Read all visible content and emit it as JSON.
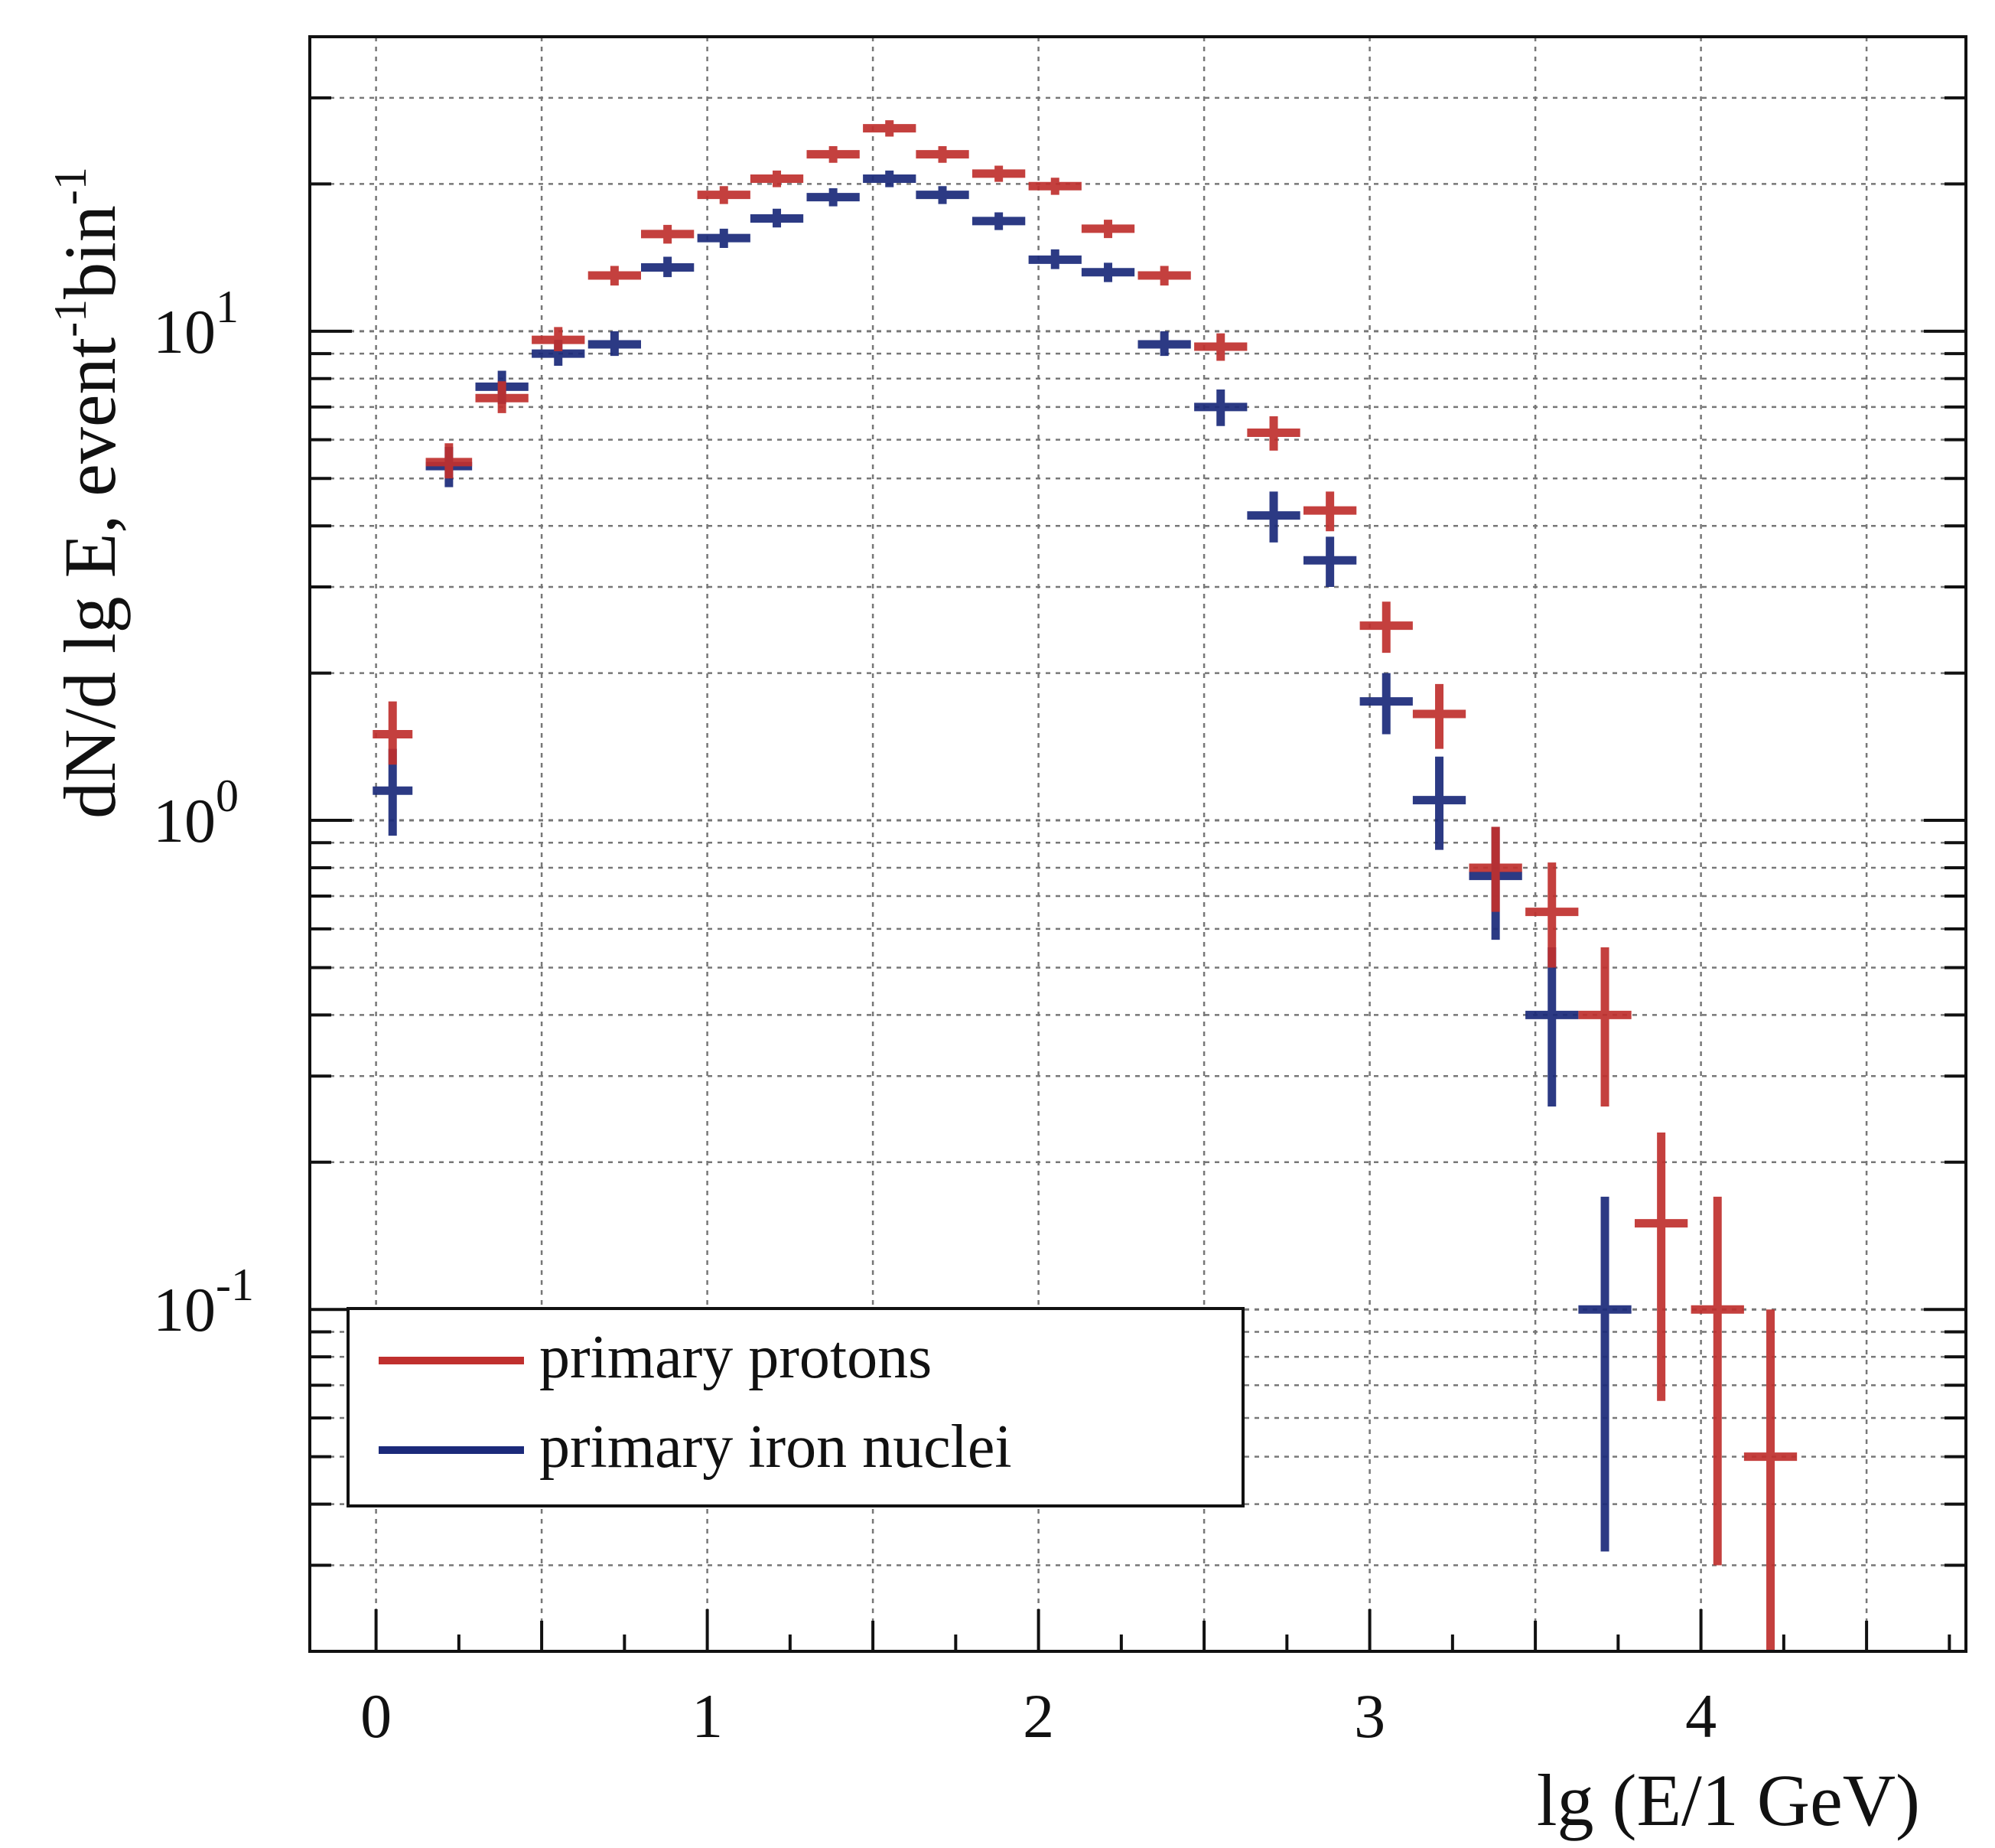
{
  "chart_data": {
    "type": "scatter",
    "title": "",
    "xlabel": "lg (E/1 GeV)",
    "ylabel": "dN/d lg E, event",
    "ylabel_sup1": "-1",
    "ylabel_mid": "bin",
    "ylabel_sup2": "-1",
    "xlim": [
      -0.2,
      4.8
    ],
    "ylim": [
      0.02,
      40
    ],
    "yscale": "log",
    "grid": true,
    "legend_position": "bottom-left",
    "x_ticks": [
      {
        "value": 0,
        "label": "0"
      },
      {
        "value": 1,
        "label": "1"
      },
      {
        "value": 2,
        "label": "2"
      },
      {
        "value": 3,
        "label": "3"
      },
      {
        "value": 4,
        "label": "4"
      }
    ],
    "y_ticks": [
      {
        "value": 10,
        "base": "10",
        "exp": "1"
      },
      {
        "value": 1,
        "base": "10",
        "exp": "0"
      },
      {
        "value": 0.1,
        "base": "10",
        "exp": "-1"
      }
    ],
    "series": [
      {
        "name": "primary protons",
        "color": "#c0302e",
        "points": [
          {
            "x": 0.05,
            "y": 1.5,
            "xerr": 0.06,
            "ylo": 1.3,
            "yhi": 1.75
          },
          {
            "x": 0.22,
            "y": 5.4,
            "xerr": 0.07,
            "ylo": 5.0,
            "yhi": 5.9
          },
          {
            "x": 0.38,
            "y": 7.3,
            "xerr": 0.08,
            "ylo": 6.8,
            "yhi": 7.9
          },
          {
            "x": 0.55,
            "y": 9.6,
            "xerr": 0.08,
            "ylo": 9.1,
            "yhi": 10.2
          },
          {
            "x": 0.72,
            "y": 13.0,
            "xerr": 0.08,
            "ylo": 12.4,
            "yhi": 13.6
          },
          {
            "x": 0.88,
            "y": 15.8,
            "xerr": 0.08,
            "ylo": 15.1,
            "yhi": 16.5
          },
          {
            "x": 1.05,
            "y": 19.0,
            "xerr": 0.08,
            "ylo": 18.2,
            "yhi": 19.8
          },
          {
            "x": 1.21,
            "y": 20.5,
            "xerr": 0.08,
            "ylo": 19.7,
            "yhi": 21.3
          },
          {
            "x": 1.38,
            "y": 23.0,
            "xerr": 0.08,
            "ylo": 22.1,
            "yhi": 23.9
          },
          {
            "x": 1.55,
            "y": 26.0,
            "xerr": 0.08,
            "ylo": 25.0,
            "yhi": 27.0
          },
          {
            "x": 1.71,
            "y": 23.0,
            "xerr": 0.08,
            "ylo": 22.1,
            "yhi": 23.9
          },
          {
            "x": 1.88,
            "y": 21.0,
            "xerr": 0.08,
            "ylo": 20.2,
            "yhi": 21.8
          },
          {
            "x": 2.05,
            "y": 19.8,
            "xerr": 0.08,
            "ylo": 19.0,
            "yhi": 20.6
          },
          {
            "x": 2.21,
            "y": 16.2,
            "xerr": 0.08,
            "ylo": 15.5,
            "yhi": 16.9
          },
          {
            "x": 2.38,
            "y": 13.0,
            "xerr": 0.08,
            "ylo": 12.4,
            "yhi": 13.6
          },
          {
            "x": 2.55,
            "y": 9.3,
            "xerr": 0.08,
            "ylo": 8.7,
            "yhi": 9.9
          },
          {
            "x": 2.71,
            "y": 6.2,
            "xerr": 0.08,
            "ylo": 5.7,
            "yhi": 6.7
          },
          {
            "x": 2.88,
            "y": 4.3,
            "xerr": 0.08,
            "ylo": 3.9,
            "yhi": 4.7
          },
          {
            "x": 3.05,
            "y": 2.5,
            "xerr": 0.08,
            "ylo": 2.2,
            "yhi": 2.8
          },
          {
            "x": 3.21,
            "y": 1.65,
            "xerr": 0.08,
            "ylo": 1.4,
            "yhi": 1.9
          },
          {
            "x": 3.38,
            "y": 0.8,
            "xerr": 0.08,
            "ylo": 0.65,
            "yhi": 0.97
          },
          {
            "x": 3.55,
            "y": 0.65,
            "xerr": 0.08,
            "ylo": 0.5,
            "yhi": 0.82
          },
          {
            "x": 3.71,
            "y": 0.4,
            "xerr": 0.08,
            "ylo": 0.26,
            "yhi": 0.55
          },
          {
            "x": 3.88,
            "y": 0.15,
            "xerr": 0.08,
            "ylo": 0.065,
            "yhi": 0.23
          },
          {
            "x": 4.05,
            "y": 0.1,
            "xerr": 0.08,
            "ylo": 0.03,
            "yhi": 0.17
          },
          {
            "x": 4.21,
            "y": 0.05,
            "xerr": 0.08,
            "ylo": 0.02,
            "yhi": 0.1
          }
        ]
      },
      {
        "name": "primary iron nuclei",
        "color": "#1b2a7a",
        "points": [
          {
            "x": 0.05,
            "y": 1.15,
            "xerr": 0.06,
            "ylo": 0.93,
            "yhi": 1.4
          },
          {
            "x": 0.22,
            "y": 5.3,
            "xerr": 0.07,
            "ylo": 4.8,
            "yhi": 5.8
          },
          {
            "x": 0.38,
            "y": 7.7,
            "xerr": 0.08,
            "ylo": 7.1,
            "yhi": 8.3
          },
          {
            "x": 0.55,
            "y": 9.0,
            "xerr": 0.08,
            "ylo": 8.5,
            "yhi": 9.6
          },
          {
            "x": 0.72,
            "y": 9.4,
            "xerr": 0.08,
            "ylo": 8.9,
            "yhi": 10.0
          },
          {
            "x": 0.88,
            "y": 13.5,
            "xerr": 0.08,
            "ylo": 12.9,
            "yhi": 14.2
          },
          {
            "x": 1.05,
            "y": 15.5,
            "xerr": 0.08,
            "ylo": 14.8,
            "yhi": 16.2
          },
          {
            "x": 1.21,
            "y": 17.0,
            "xerr": 0.08,
            "ylo": 16.3,
            "yhi": 17.8
          },
          {
            "x": 1.38,
            "y": 18.8,
            "xerr": 0.08,
            "ylo": 18.0,
            "yhi": 19.6
          },
          {
            "x": 1.55,
            "y": 20.5,
            "xerr": 0.08,
            "ylo": 19.7,
            "yhi": 21.3
          },
          {
            "x": 1.71,
            "y": 19.0,
            "xerr": 0.08,
            "ylo": 18.2,
            "yhi": 19.8
          },
          {
            "x": 1.88,
            "y": 16.8,
            "xerr": 0.08,
            "ylo": 16.1,
            "yhi": 17.5
          },
          {
            "x": 2.05,
            "y": 14.0,
            "xerr": 0.08,
            "ylo": 13.4,
            "yhi": 14.7
          },
          {
            "x": 2.21,
            "y": 13.2,
            "xerr": 0.08,
            "ylo": 12.6,
            "yhi": 13.8
          },
          {
            "x": 2.38,
            "y": 9.4,
            "xerr": 0.08,
            "ylo": 8.9,
            "yhi": 10.0
          },
          {
            "x": 2.55,
            "y": 7.0,
            "xerr": 0.08,
            "ylo": 6.4,
            "yhi": 7.6
          },
          {
            "x": 2.71,
            "y": 4.2,
            "xerr": 0.08,
            "ylo": 3.7,
            "yhi": 4.7
          },
          {
            "x": 2.88,
            "y": 3.4,
            "xerr": 0.08,
            "ylo": 3.0,
            "yhi": 3.8
          },
          {
            "x": 3.05,
            "y": 1.75,
            "xerr": 0.08,
            "ylo": 1.5,
            "yhi": 2.0
          },
          {
            "x": 3.21,
            "y": 1.1,
            "xerr": 0.08,
            "ylo": 0.87,
            "yhi": 1.35
          },
          {
            "x": 3.38,
            "y": 0.77,
            "xerr": 0.08,
            "ylo": 0.57,
            "yhi": 0.97
          },
          {
            "x": 3.55,
            "y": 0.4,
            "xerr": 0.08,
            "ylo": 0.26,
            "yhi": 0.55
          },
          {
            "x": 3.71,
            "y": 0.1,
            "xerr": 0.08,
            "ylo": 0.032,
            "yhi": 0.17
          }
        ]
      }
    ]
  }
}
